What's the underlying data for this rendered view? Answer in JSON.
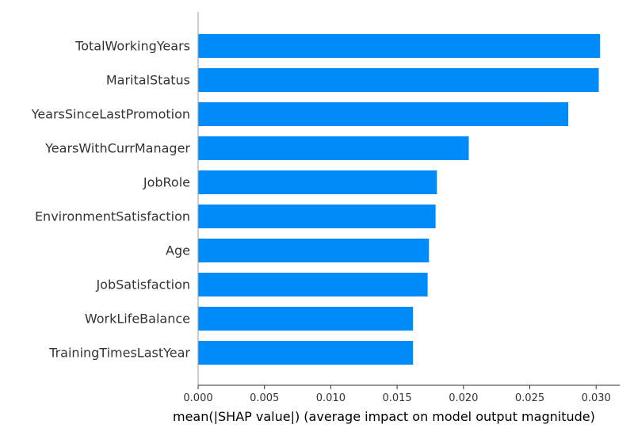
{
  "chart_data": {
    "type": "bar",
    "orientation": "horizontal",
    "categories": [
      "TotalWorkingYears",
      "MaritalStatus",
      "YearsSinceLastPromotion",
      "YearsWithCurrManager",
      "JobRole",
      "EnvironmentSatisfaction",
      "Age",
      "JobSatisfaction",
      "WorkLifeBalance",
      "TrainingTimesLastYear"
    ],
    "values": [
      0.0303,
      0.0302,
      0.0279,
      0.0204,
      0.018,
      0.0179,
      0.0174,
      0.0173,
      0.0162,
      0.0162
    ],
    "title": "",
    "xlabel": "mean(|SHAP value|) (average impact on model output magnitude)",
    "ylabel": "",
    "xlim": [
      0,
      0.0318
    ],
    "xticks": [
      "0.000",
      "0.005",
      "0.010",
      "0.015",
      "0.020",
      "0.025",
      "0.030"
    ],
    "bar_color": "#008bfb",
    "axis_color": "#999999",
    "grid": false,
    "legend": "none"
  }
}
